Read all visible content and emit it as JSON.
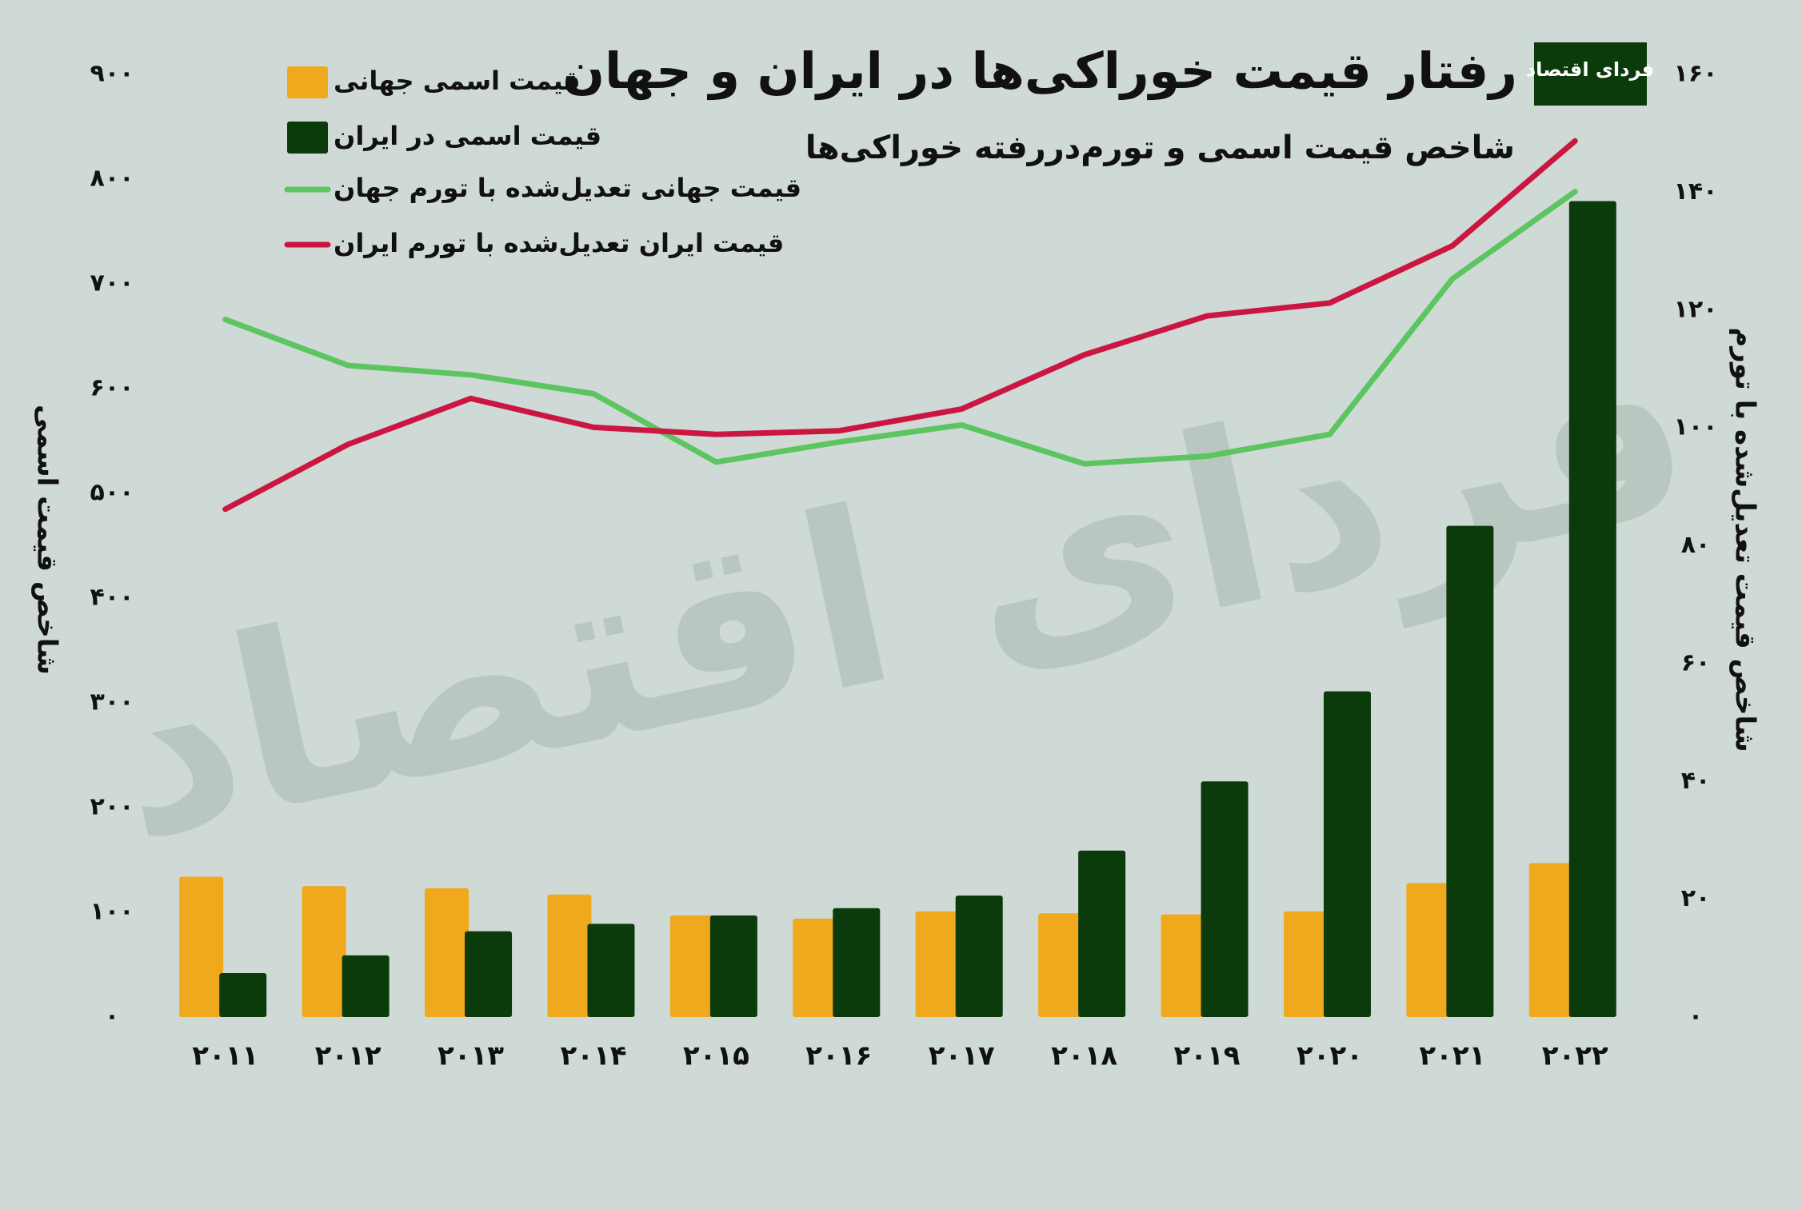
{
  "chart_data": {
    "type": "bar",
    "title": "رفتار قیمت خوراکی‌ها در ایران و جهان",
    "subtitle": "شاخص قیمت اسمی و تورم‌دررفته خوراکی‌ها",
    "logo": "فردای اقتصاد",
    "y_label": "شاخص قیمت اسمی",
    "y2_label": "شاخص قیمت تعدیل‌شده با تورم",
    "categories": [
      "۲۰۱۱",
      "۲۰۱۲",
      "۲۰۱۳",
      "۲۰۱۴",
      "۲۰۱۵",
      "۲۰۱۶",
      "۲۰۱۷",
      "۲۰۱۸",
      "۲۰۱۹",
      "۲۰۲۰",
      "۲۰۲۱",
      "۲۰۲۲"
    ],
    "series": [
      {
        "name": "قیمت اسمی جهانی",
        "type": "bar",
        "color": "#f0a81c",
        "values": [
          134,
          125,
          123,
          117,
          97,
          94,
          101,
          99,
          98,
          101,
          128,
          147
        ]
      },
      {
        "name": "قیمت اسمی در ایران",
        "type": "bar",
        "color": "#0b3a0b",
        "values": [
          42,
          59,
          82,
          89,
          97,
          104,
          116,
          159,
          225,
          311,
          469,
          779
        ]
      },
      {
        "name": "قیمت جهانی تعدیل‌شده با تورم جهان",
        "type": "line",
        "axis": "y2",
        "color": "#5cc560",
        "values": [
          118.4,
          110.6,
          109,
          105.8,
          94.2,
          97.6,
          100.5,
          93.9,
          95.2,
          98.9,
          125.3,
          140.1
        ]
      },
      {
        "name": "قیمت ایران تعدیل‌شده با تورم ایران",
        "type": "line",
        "axis": "y2",
        "color": "#cc1642",
        "values": [
          86.2,
          97.2,
          105,
          100.1,
          98.9,
          99.5,
          103.2,
          112.4,
          119,
          121.2,
          130.9,
          148.7
        ]
      }
    ],
    "ylim": [
      0,
      900
    ],
    "yticks": [
      {
        "value": 0,
        "label": "۰"
      },
      {
        "value": 100,
        "label": "۱۰۰"
      },
      {
        "value": 200,
        "label": "۲۰۰"
      },
      {
        "value": 300,
        "label": "۳۰۰"
      },
      {
        "value": 400,
        "label": "۴۰۰"
      },
      {
        "value": 500,
        "label": "۵۰۰"
      },
      {
        "value": 600,
        "label": "۶۰۰"
      },
      {
        "value": 700,
        "label": "۷۰۰"
      },
      {
        "value": 800,
        "label": "۸۰۰"
      },
      {
        "value": 900,
        "label": "۹۰۰"
      }
    ],
    "y2lim": [
      0,
      160
    ],
    "y2ticks": [
      {
        "value": 0,
        "label": "۰"
      },
      {
        "value": 20,
        "label": "۲۰"
      },
      {
        "value": 40,
        "label": "۴۰"
      },
      {
        "value": 60,
        "label": "۶۰"
      },
      {
        "value": 80,
        "label": "۸۰"
      },
      {
        "value": 100,
        "label": "۱۰۰"
      },
      {
        "value": 120,
        "label": "۱۲۰"
      },
      {
        "value": 140,
        "label": "۱۴۰"
      },
      {
        "value": 160,
        "label": "۱۶۰"
      }
    ],
    "grid": false
  }
}
